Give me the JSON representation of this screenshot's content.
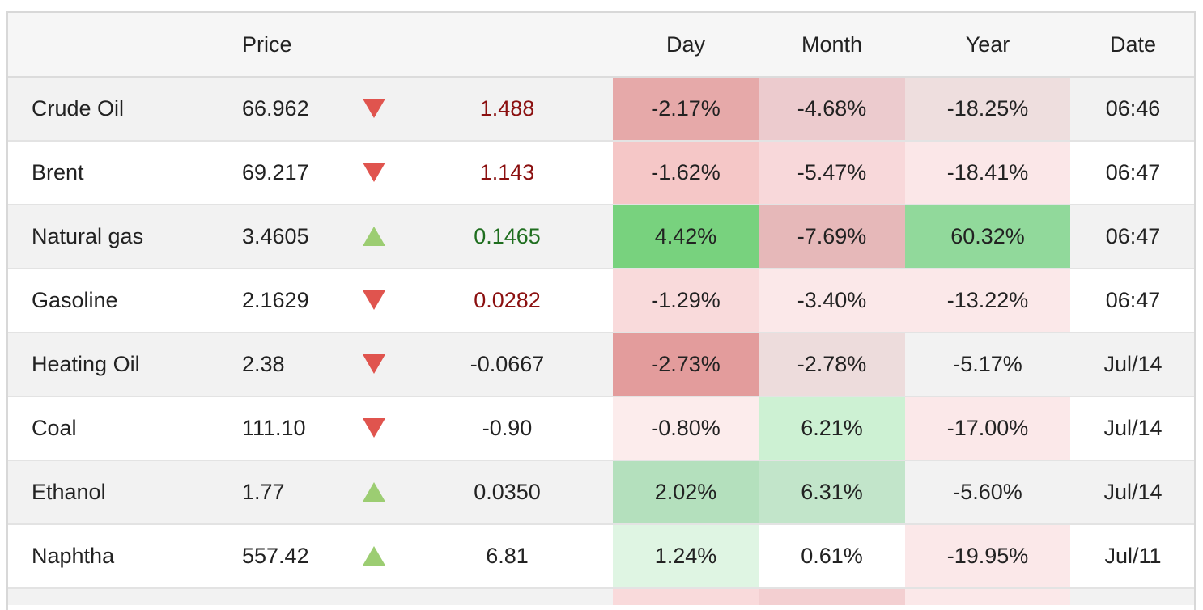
{
  "header": {
    "name": "",
    "price": "Price",
    "arrow": "",
    "change": "",
    "day": "Day",
    "month": "Month",
    "year": "Year",
    "date": "Date"
  },
  "rows": [
    {
      "name": "Crude Oil",
      "price": "66.962",
      "dir": "down",
      "change": "1.488",
      "change_tone": "neg",
      "day": "-2.17%",
      "day_bg": "#e6a9a9",
      "month": "-4.68%",
      "month_bg": "#eccbce",
      "year": "-18.25%",
      "year_bg": "#eedede",
      "date": "06:46"
    },
    {
      "name": "Brent",
      "price": "69.217",
      "dir": "down",
      "change": "1.143",
      "change_tone": "neg",
      "day": "-1.62%",
      "day_bg": "#f5c7c7",
      "month": "-5.47%",
      "month_bg": "#f8d8da",
      "year": "-18.41%",
      "year_bg": "#fbe7e8",
      "date": "06:47"
    },
    {
      "name": "Natural gas",
      "price": "3.4605",
      "dir": "up",
      "change": "0.1465",
      "change_tone": "pos",
      "day": "4.42%",
      "day_bg": "#78d27e",
      "month": "-7.69%",
      "month_bg": "#e6b8b9",
      "year": "60.32%",
      "year_bg": "#91d99b",
      "date": "06:47"
    },
    {
      "name": "Gasoline",
      "price": "2.1629",
      "dir": "down",
      "change": "0.0282",
      "change_tone": "neg",
      "day": "-1.29%",
      "day_bg": "#f9dadb",
      "month": "-3.40%",
      "month_bg": "#fbe8e9",
      "year": "-13.22%",
      "year_bg": "#fbe8e9",
      "date": "06:47"
    },
    {
      "name": "Heating Oil",
      "price": "2.38",
      "dir": "down",
      "change": "-0.0667",
      "change_tone": "neutral",
      "day": "-2.73%",
      "day_bg": "#e39c9c",
      "month": "-2.78%",
      "month_bg": "#eddcdc",
      "year": "-5.17%",
      "year_bg": "",
      "date": "Jul/14"
    },
    {
      "name": "Coal",
      "price": "111.10",
      "dir": "down",
      "change": "-0.90",
      "change_tone": "neutral",
      "day": "-0.80%",
      "day_bg": "#fcecec",
      "month": "6.21%",
      "month_bg": "#cdf1d3",
      "year": "-17.00%",
      "year_bg": "#fbe8e9",
      "date": "Jul/14"
    },
    {
      "name": "Ethanol",
      "price": "1.77",
      "dir": "up",
      "change": "0.0350",
      "change_tone": "neutral",
      "day": "2.02%",
      "day_bg": "#b4e0bd",
      "month": "6.31%",
      "month_bg": "#c2e5ca",
      "year": "-5.60%",
      "year_bg": "",
      "date": "Jul/14"
    },
    {
      "name": "Naphtha",
      "price": "557.42",
      "dir": "up",
      "change": "6.81",
      "change_tone": "neutral",
      "day": "1.24%",
      "day_bg": "#dff5e3",
      "month": "0.61%",
      "month_bg": "",
      "year": "-19.95%",
      "year_bg": "#fbe8e9",
      "date": "Jul/11"
    }
  ],
  "partial_row": {
    "day_bg": "#f9dadb",
    "month_bg": "#f3cfd1",
    "year_bg": "#fbe8e9"
  }
}
